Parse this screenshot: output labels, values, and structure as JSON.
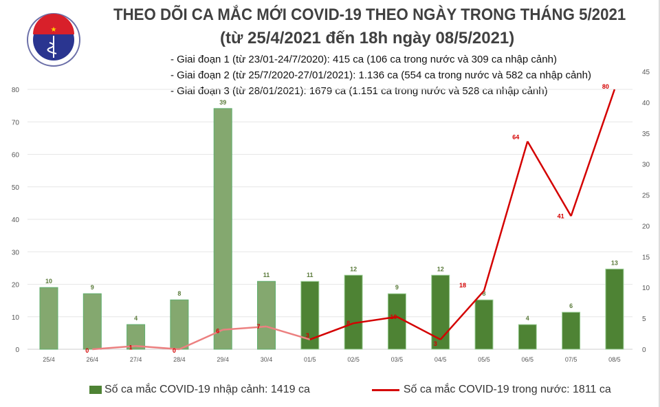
{
  "header": {
    "title_line1": "THEO DÕI CA MẮC MỚI COVID-19 THEO NGÀY TRONG THÁNG 5/2021",
    "title_line2": "(từ 25/4/2021 đến 18h ngày 08/5/2021)",
    "notes": [
      "- Giai đoạn 1 (từ 23/01-24/7/2020): 415 ca (106 ca trong nước và 309 ca nhập cảnh)",
      "- Giai đoạn 2 (từ 25/7/2020-27/01/2021): 1.136 ca (554 ca trong nước và 582 ca nhập cảnh)",
      "- Giai đoạn 3 (từ 28/01/2021): 1679 ca (1.151 ca trong nước và 528 ca nhập cảnh)"
    ],
    "logo": {
      "top_text": "BỘ Y TẾ",
      "bottom_text": "MINISTRY OF HEALTH"
    }
  },
  "chart_data": {
    "type": "bar+line",
    "categories": [
      "25/4",
      "26/4",
      "27/4",
      "28/4",
      "29/4",
      "30/4",
      "01/5",
      "02/5",
      "03/5",
      "04/5",
      "05/5",
      "06/5",
      "07/5",
      "08/5"
    ],
    "series": [
      {
        "name": "Số ca mắc COVID-19 nhập cảnh: 1419 ca",
        "type": "bar",
        "axis": "right",
        "values": [
          10,
          9,
          4,
          8,
          39,
          11,
          11,
          12,
          9,
          12,
          8,
          4,
          6,
          13
        ],
        "color": "#4e8334",
        "color_earlier": "#84a86f"
      },
      {
        "name": "Số ca mắc COVID-19 trong nước: 1811 ca",
        "type": "line",
        "axis": "left",
        "values": [
          null,
          0,
          1,
          0,
          6,
          7,
          3,
          8,
          10,
          3,
          18,
          64,
          41,
          80
        ],
        "color": "#d40000",
        "color_earlier": "#ec8080"
      }
    ],
    "left_axis": {
      "ylim": [
        0,
        80
      ],
      "ticks": [
        0,
        10,
        20,
        30,
        40,
        50,
        60,
        70,
        80
      ]
    },
    "right_axis": {
      "ylim": [
        0,
        45
      ],
      "ticks": [
        0,
        5,
        10,
        15,
        20,
        25,
        30,
        35,
        40,
        45
      ]
    },
    "grid": true,
    "legend": "bottom"
  }
}
